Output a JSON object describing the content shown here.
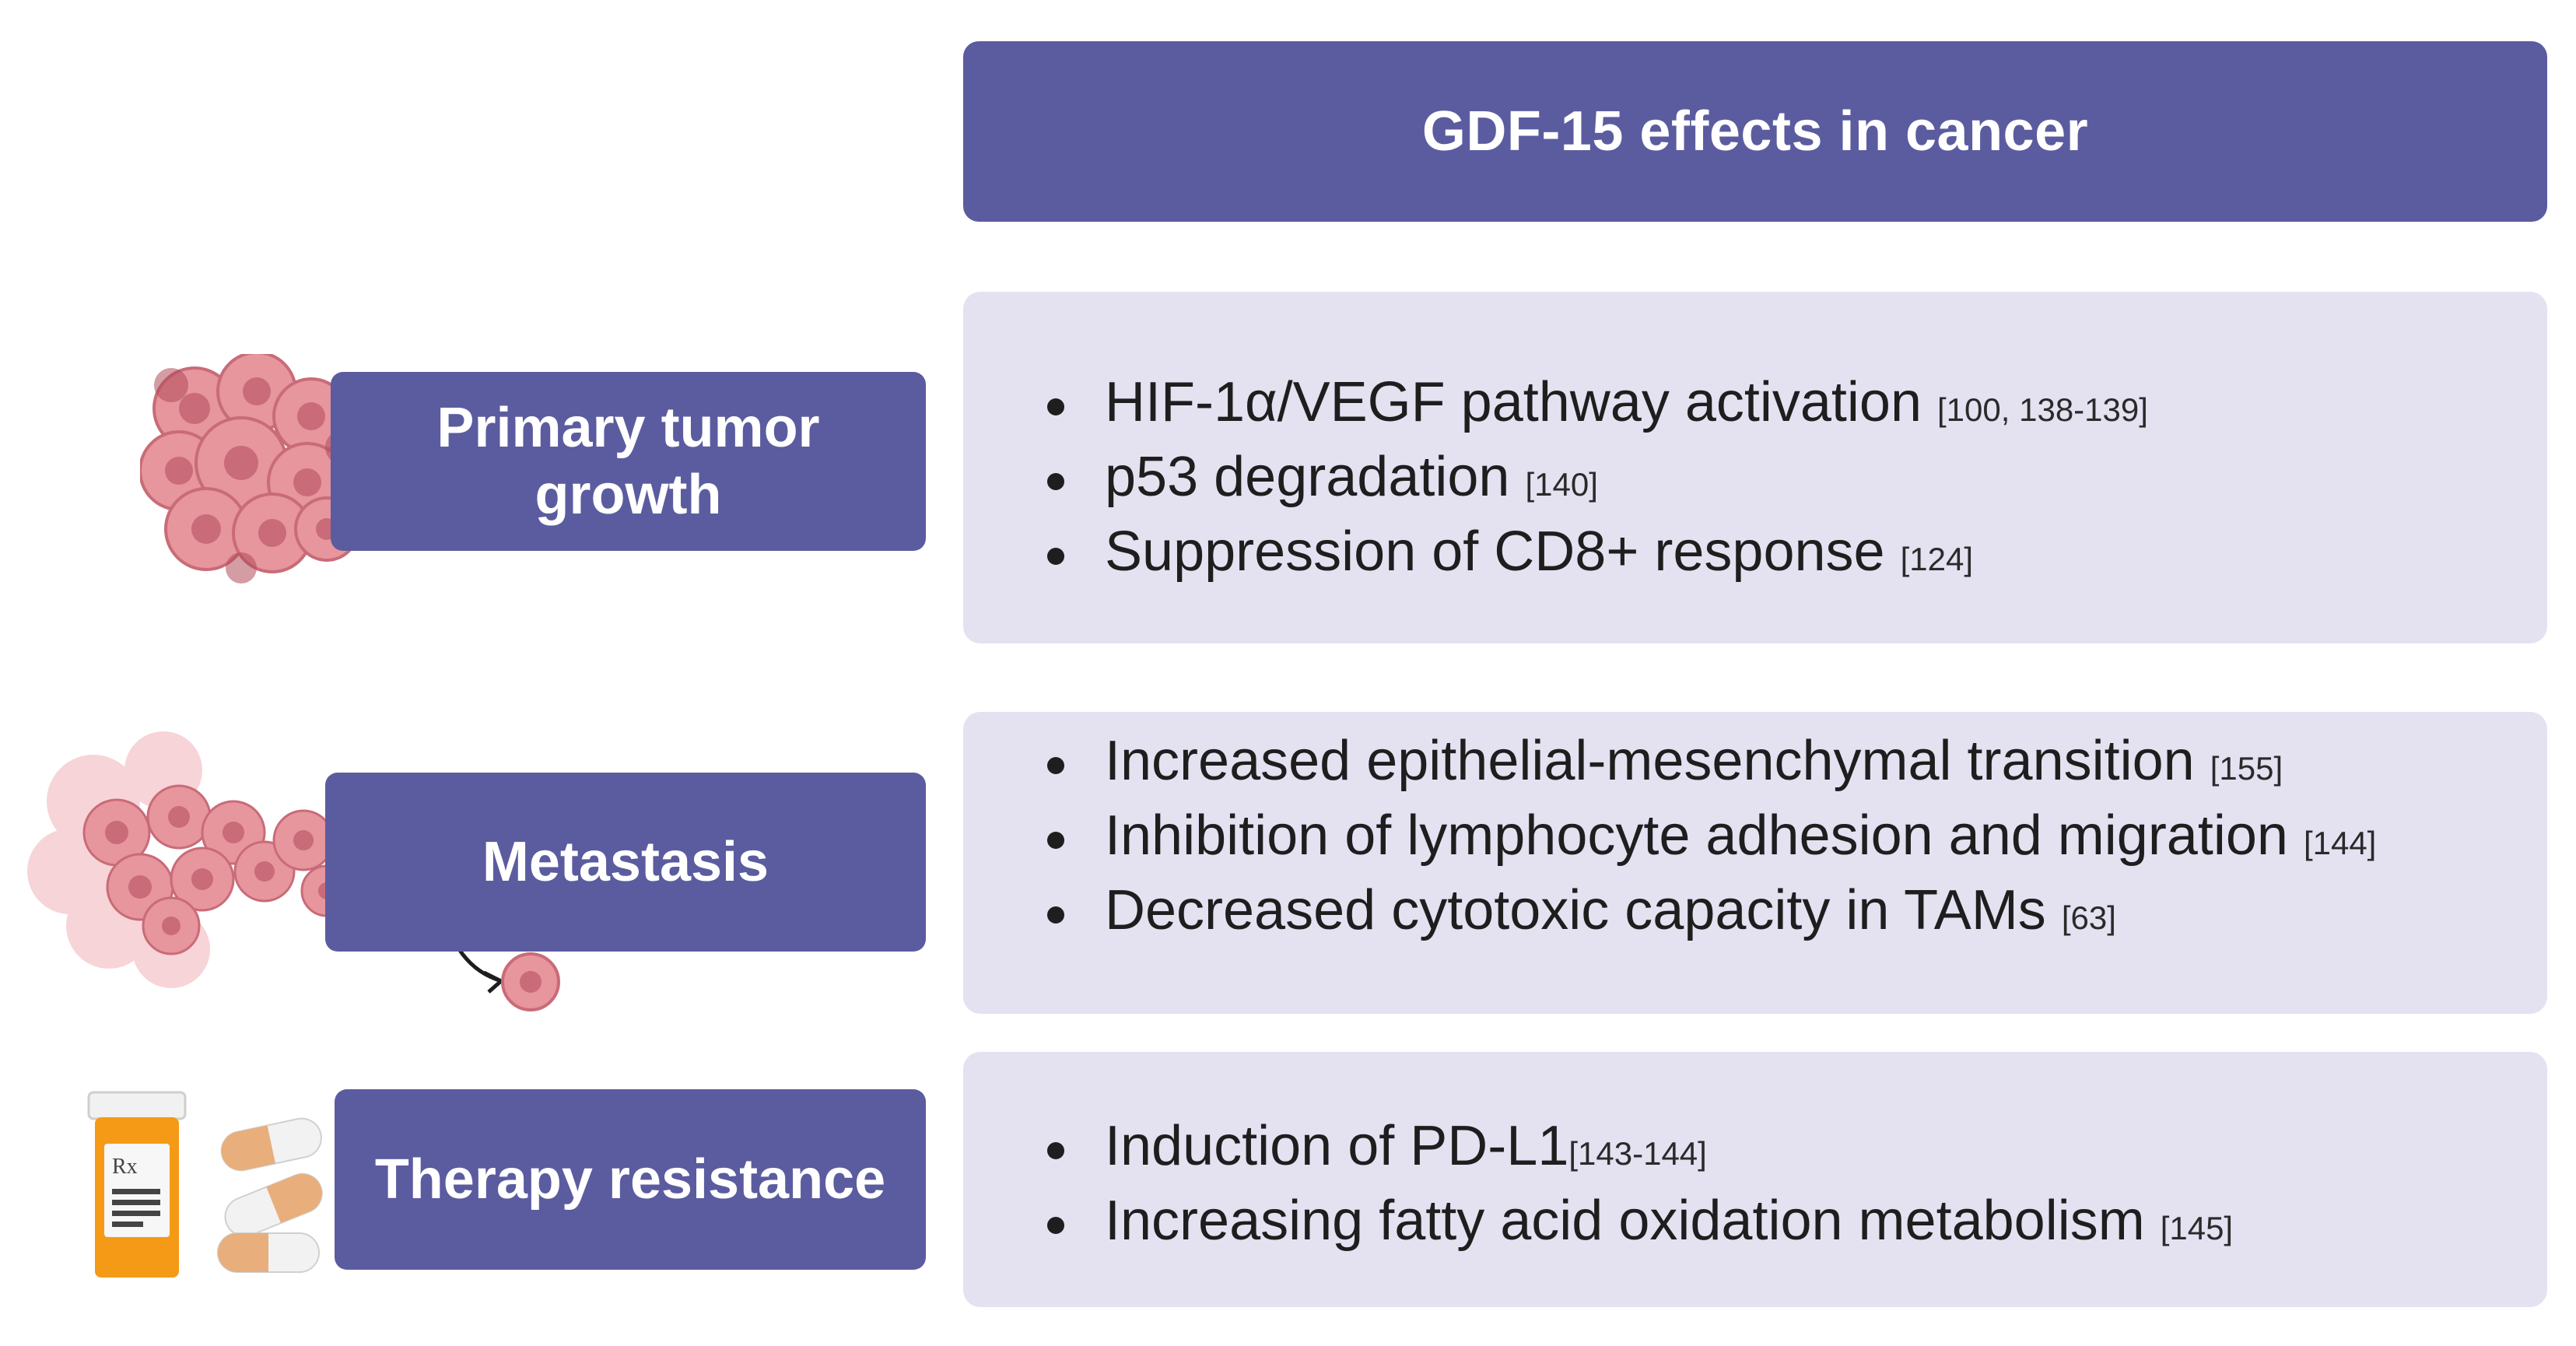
{
  "header": {
    "title": "GDF-15 effects in cancer"
  },
  "colors": {
    "box_dark": "#5b5c9f",
    "box_light": "#e4e1f1",
    "cell_pink": "#e6969c",
    "cell_dark": "#b04a5a",
    "bottle": "#f59a16"
  },
  "rows": [
    {
      "label_lines": [
        "Primary tumor",
        "growth"
      ],
      "icon": "tumor-cluster-icon",
      "items": [
        {
          "text": "HIF-1α/VEGF  pathway activation ",
          "ref": "[100, 138-139]"
        },
        {
          "text": "p53 degradation ",
          "ref": "[140]"
        },
        {
          "text": "Suppression of CD8+ response ",
          "ref": "[124]"
        }
      ]
    },
    {
      "label": "Metastasis",
      "icon": "metastasis-cells-icon",
      "items": [
        {
          "text": "Increased epithelial-mesenchymal transition ",
          "ref": "[155]"
        },
        {
          "text": "Inhibition of lymphocyte adhesion and migration ",
          "ref": "[144]"
        },
        {
          "text": "Decreased cytotoxic capacity in TAMs ",
          "ref": "[63]"
        }
      ]
    },
    {
      "label": "Therapy resistance",
      "icon": "pill-bottle-icon",
      "bottle_text": "Rx",
      "items": [
        {
          "text": "Induction of PD-L1",
          "ref": "[143-144]"
        },
        {
          "text": "Increasing fatty acid oxidation metabolism ",
          "ref": "[145]"
        }
      ]
    }
  ]
}
